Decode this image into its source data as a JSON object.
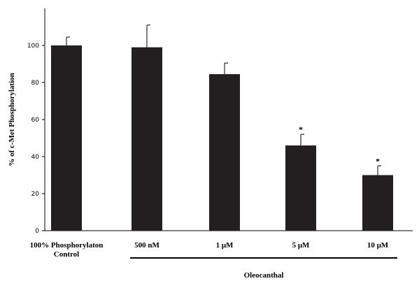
{
  "chart_data": {
    "type": "bar",
    "categories": [
      [
        "100% Phosphorylaton",
        "Control"
      ],
      [
        "500 nM"
      ],
      [
        "1 μM"
      ],
      [
        "5 μM"
      ],
      [
        "10 μM"
      ]
    ],
    "values": [
      100,
      99,
      84.5,
      46,
      30
    ],
    "error_upper": [
      104.5,
      111,
      90.5,
      52,
      35
    ],
    "significance": [
      "",
      "",
      "",
      "*",
      "*"
    ],
    "ylabel": "% of c-Met Phosphorylation",
    "group_label": "Oleocanthal",
    "group_span": [
      "500 nM",
      "10 μM"
    ],
    "ylim": [
      0,
      120
    ],
    "yticks": [
      0,
      20,
      40,
      60,
      80,
      100
    ],
    "grid": false,
    "colors": {
      "bar": "#231f20",
      "axis": "#000000"
    }
  }
}
